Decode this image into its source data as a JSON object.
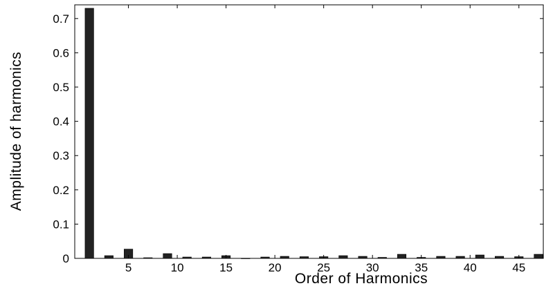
{
  "chart_data": {
    "type": "bar",
    "title": "",
    "xlabel": "Order of Harmonics",
    "ylabel": "Amplitude of harmonics",
    "x": [
      1,
      3,
      5,
      7,
      9,
      11,
      13,
      15,
      17,
      19,
      21,
      23,
      25,
      27,
      29,
      31,
      33,
      35,
      37,
      39,
      41,
      43,
      45,
      47
    ],
    "values": [
      0.73,
      0.008,
      0.027,
      0.002,
      0.014,
      0.004,
      0.004,
      0.008,
      0.0005,
      0.004,
      0.006,
      0.005,
      0.005,
      0.008,
      0.006,
      0.003,
      0.012,
      0.003,
      0.006,
      0.006,
      0.01,
      0.006,
      0.005,
      0.012
    ],
    "xlim": [
      -0.5,
      47.5
    ],
    "ylim": [
      0,
      0.74
    ],
    "xticks": [
      5,
      10,
      15,
      20,
      25,
      30,
      35,
      40,
      45
    ],
    "yticks": [
      0,
      0.1,
      0.2,
      0.3,
      0.4,
      0.5,
      0.6,
      0.7
    ],
    "xtick_labels": [
      "5",
      "10",
      "15",
      "20",
      "25",
      "30",
      "35",
      "40",
      "45"
    ],
    "ytick_labels": [
      "0",
      "0.1",
      "0.2",
      "0.3",
      "0.4",
      "0.5",
      "0.6",
      "0.7"
    ],
    "grid": false,
    "bar_color": "#222222"
  }
}
